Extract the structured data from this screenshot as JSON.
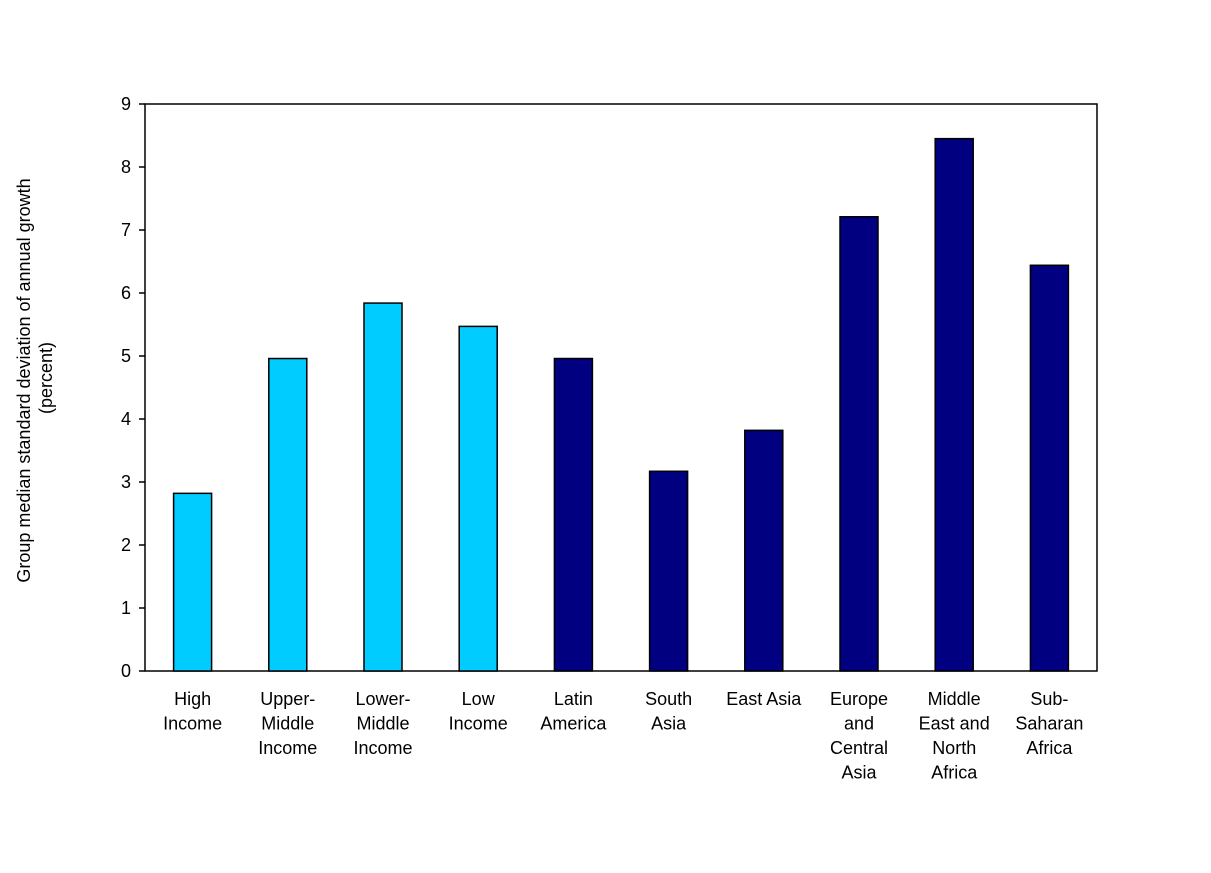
{
  "chart_data": {
    "type": "bar",
    "title": "",
    "xlabel": "",
    "ylabel_lines": [
      "Group median standard deviation of annual growth",
      "(percent)"
    ],
    "ylim": [
      0,
      9
    ],
    "yticks": [
      0,
      1,
      2,
      3,
      4,
      5,
      6,
      7,
      8,
      9
    ],
    "grid": false,
    "legend": "none",
    "categories": [
      [
        "High",
        "Income"
      ],
      [
        "Upper-",
        "Middle",
        "Income"
      ],
      [
        "Lower-",
        "Middle",
        "Income"
      ],
      [
        "Low",
        "Income"
      ],
      [
        "Latin",
        "America"
      ],
      [
        "South",
        "Asia"
      ],
      [
        "East Asia"
      ],
      [
        "Europe",
        "and",
        "Central",
        "Asia"
      ],
      [
        "Middle",
        "East and",
        "North",
        "Africa"
      ],
      [
        "Sub-",
        "Saharan",
        "Africa"
      ]
    ],
    "values": [
      2.82,
      4.96,
      5.84,
      5.47,
      4.96,
      3.17,
      3.82,
      7.21,
      8.45,
      6.44
    ],
    "colors": [
      "#00ccff",
      "#00ccff",
      "#00ccff",
      "#00ccff",
      "#000080",
      "#000080",
      "#000080",
      "#000080",
      "#000080",
      "#000080"
    ]
  }
}
